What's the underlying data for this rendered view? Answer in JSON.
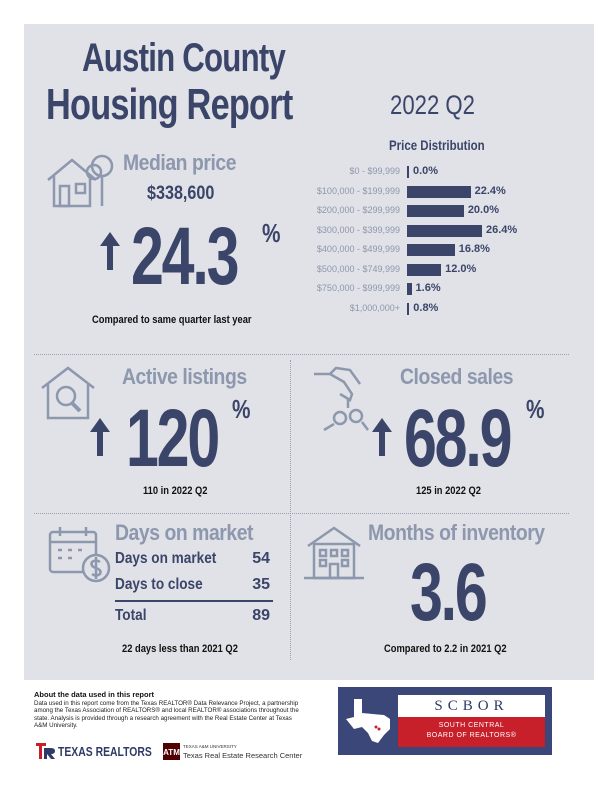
{
  "title": {
    "line1": "Austin County",
    "line2": "Housing Report"
  },
  "quarter": "2022 Q2",
  "median_price": {
    "title": "Median price",
    "value": "$338,600",
    "change": "24.3",
    "percent_sign": "%",
    "note": "Compared to same quarter last year"
  },
  "price_distribution": {
    "title": "Price Distribution",
    "rows": [
      {
        "label": "$0 - $99,999",
        "value": "0.0%",
        "fraction": 0.0
      },
      {
        "label": "$100,000 - $199,999",
        "value": "22.4%",
        "fraction": 0.224
      },
      {
        "label": "$200,000 - $299,999",
        "value": "20.0%",
        "fraction": 0.2
      },
      {
        "label": "$300,000 - $399,999",
        "value": "26.4%",
        "fraction": 0.264
      },
      {
        "label": "$400,000 - $499,999",
        "value": "16.8%",
        "fraction": 0.168
      },
      {
        "label": "$500,000 - $749,999",
        "value": "12.0%",
        "fraction": 0.12
      },
      {
        "label": "$750,000 - $999,999",
        "value": "1.6%",
        "fraction": 0.016
      },
      {
        "label": "$1,000,000+",
        "value": "0.8%",
        "fraction": 0.008
      }
    ]
  },
  "active_listings": {
    "title": "Active listings",
    "change": "120",
    "percent_sign": "%",
    "note": "110 in 2022 Q2"
  },
  "closed_sales": {
    "title": "Closed sales",
    "change": "68.9",
    "percent_sign": "%",
    "note": "125 in 2022 Q2"
  },
  "days_on_market": {
    "title": "Days on market",
    "rows": [
      {
        "label": "Days on market",
        "value": "54"
      },
      {
        "label": "Days to close",
        "value": "35"
      }
    ],
    "total_label": "Total",
    "total_value": "89",
    "note": "22 days less than 2021 Q2"
  },
  "months_of_inventory": {
    "title": "Months of inventory",
    "value": "3.6",
    "note": "Compared to 2.2 in 2021 Q2"
  },
  "about": {
    "title": "About the data used in this report",
    "body": "Data used in this report come from the Texas REALTOR® Data Relevance Project, a partnership among the Texas Association of REALTORS® and local REALTOR® associations throughout the state. Analysis is provided through a research agreement with the Real Estate Center at Texas A&M University."
  },
  "logos": {
    "texas_realtors": "TEXAS REALTORS",
    "tamu_small": "TEXAS A&M UNIVERSITY",
    "tamu_center": "Texas Real Estate Research Center",
    "scbor_name": "SCBOR",
    "scbor_sub_line1": "SOUTH CENTRAL",
    "scbor_sub_line2": "BOARD OF REALTORS®"
  },
  "colors": {
    "navy": "#3b4569",
    "muted": "#8d97ad",
    "panel": "#e0e2e7",
    "red": "#c8202b"
  }
}
